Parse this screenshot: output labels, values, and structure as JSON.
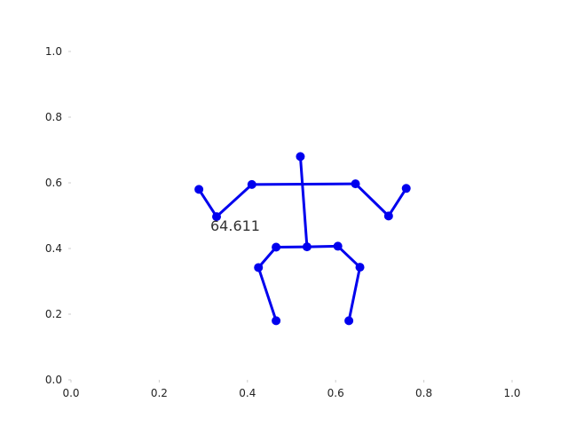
{
  "chart_data": {
    "type": "scatter",
    "xlim": [
      0.0,
      1.0
    ],
    "ylim": [
      0.0,
      1.0
    ],
    "x_ticks": [
      "0.0",
      "0.2",
      "0.4",
      "0.6",
      "0.8",
      "1.0"
    ],
    "y_ticks": [
      "0.0",
      "0.2",
      "0.4",
      "0.6",
      "0.8",
      "1.0"
    ],
    "grid": false,
    "color": "#0000ee",
    "annotation": {
      "text": "64.611",
      "x": 0.33,
      "y": 0.47
    },
    "points": [
      {
        "name": "head",
        "x": 0.52,
        "y": 0.68
      },
      {
        "name": "right-shoulder",
        "x": 0.41,
        "y": 0.595
      },
      {
        "name": "left-shoulder",
        "x": 0.645,
        "y": 0.597
      },
      {
        "name": "right-elbow",
        "x": 0.33,
        "y": 0.497
      },
      {
        "name": "left-elbow",
        "x": 0.72,
        "y": 0.499
      },
      {
        "name": "right-wrist",
        "x": 0.29,
        "y": 0.58
      },
      {
        "name": "left-wrist",
        "x": 0.76,
        "y": 0.583
      },
      {
        "name": "pelvis",
        "x": 0.535,
        "y": 0.405
      },
      {
        "name": "right-hip",
        "x": 0.465,
        "y": 0.404
      },
      {
        "name": "left-hip",
        "x": 0.605,
        "y": 0.407
      },
      {
        "name": "right-knee",
        "x": 0.425,
        "y": 0.342
      },
      {
        "name": "left-knee",
        "x": 0.655,
        "y": 0.343
      },
      {
        "name": "right-ankle",
        "x": 0.465,
        "y": 0.18
      },
      {
        "name": "left-ankle",
        "x": 0.63,
        "y": 0.18
      }
    ],
    "segments": [
      [
        "head",
        "pelvis"
      ],
      [
        "right-shoulder",
        "left-shoulder"
      ],
      [
        "right-shoulder",
        "right-elbow"
      ],
      [
        "right-elbow",
        "right-wrist"
      ],
      [
        "left-shoulder",
        "left-elbow"
      ],
      [
        "left-elbow",
        "left-wrist"
      ],
      [
        "pelvis",
        "right-hip"
      ],
      [
        "pelvis",
        "left-hip"
      ],
      [
        "right-hip",
        "right-knee"
      ],
      [
        "right-knee",
        "right-ankle"
      ],
      [
        "left-hip",
        "left-knee"
      ],
      [
        "left-knee",
        "left-ankle"
      ]
    ]
  }
}
